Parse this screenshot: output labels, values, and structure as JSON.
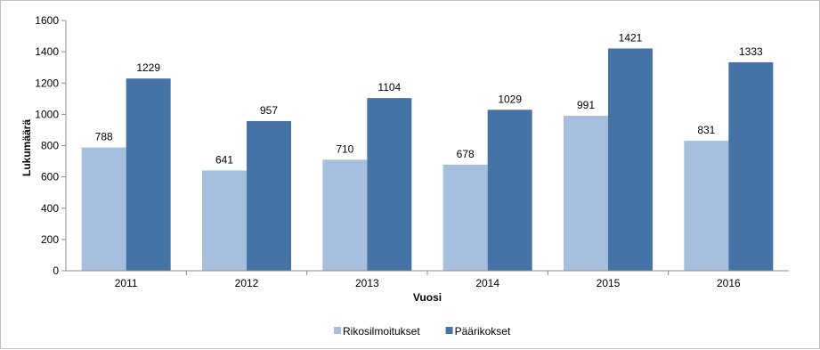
{
  "chart_data": {
    "type": "bar",
    "title": "",
    "xlabel": "Vuosi",
    "ylabel": "Lukumäärä",
    "ylim": [
      0,
      1600
    ],
    "yticks": [
      0,
      200,
      400,
      600,
      800,
      1000,
      1200,
      1400,
      1600
    ],
    "categories": [
      "2011",
      "2012",
      "2013",
      "2014",
      "2015",
      "2016"
    ],
    "series": [
      {
        "name": "Rikosilmoitukset",
        "color": "#a6bfdf",
        "values": [
          788,
          641,
          710,
          678,
          991,
          831
        ]
      },
      {
        "name": "Päärikokset",
        "color": "#4573a6",
        "values": [
          1229,
          957,
          1104,
          1029,
          1421,
          1333
        ]
      }
    ],
    "grid": false,
    "data_labels": true,
    "legend_position": "bottom"
  }
}
